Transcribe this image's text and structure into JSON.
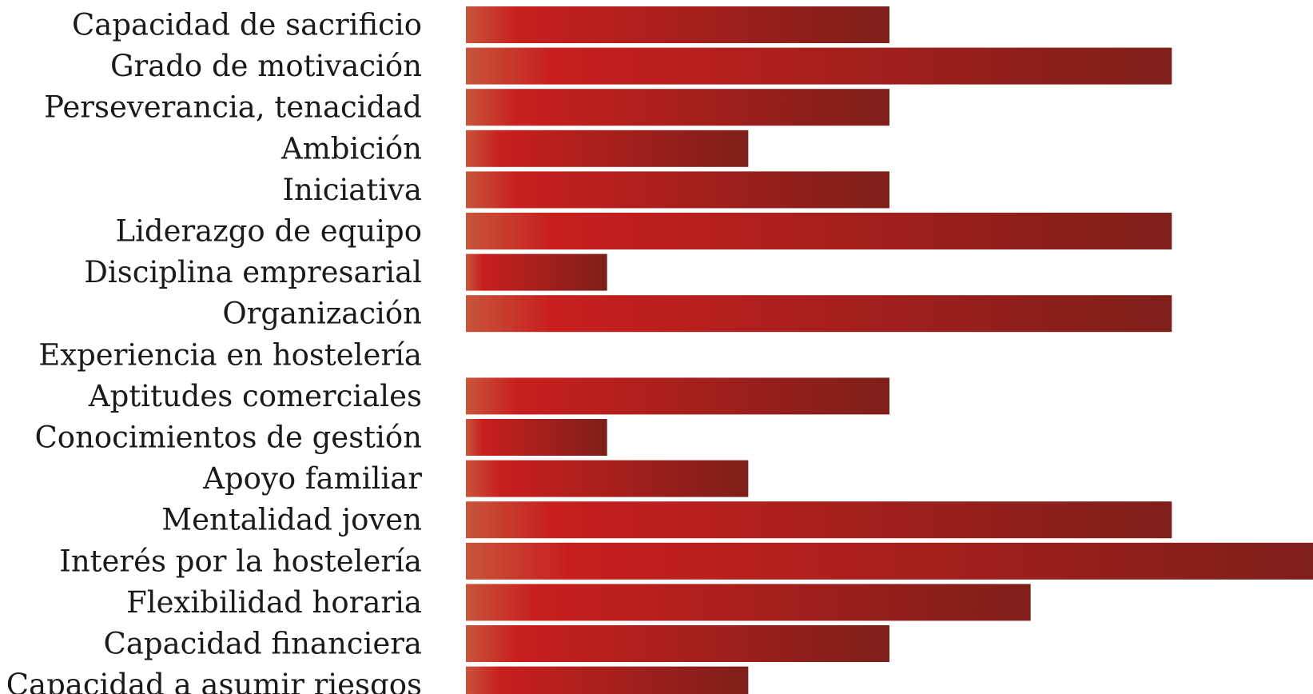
{
  "chart_data": {
    "type": "bar",
    "orientation": "horizontal",
    "title": "",
    "xlabel": "",
    "ylabel": "",
    "xlim": [
      0,
      6
    ],
    "grid": false,
    "legend": "none",
    "colors": {
      "bar_start": "#c8553a",
      "bar_mid": "#c81f1e",
      "bar_end": "#7e1f1a",
      "label": "#1a1a1a"
    },
    "categories": [
      "Capacidad de sacrificio",
      "Grado de motivación",
      "Perseverancia, tenacidad",
      "Ambición",
      "Iniciativa",
      "Liderazgo de equipo",
      "Disciplina empresarial",
      "Organización",
      "Experiencia en hostelería",
      "Aptitudes comerciales",
      "Conocimientos de gestión",
      "Apoyo familiar",
      "Mentalidad joven",
      "Interés por la hostelería",
      "Flexibilidad horaria",
      "Capacidad financiera",
      "Capacidad a asumir riesgos"
    ],
    "values": [
      3,
      5,
      3,
      2,
      3,
      5,
      1,
      5,
      0,
      3,
      1,
      2,
      5,
      6,
      4,
      3,
      2
    ]
  }
}
